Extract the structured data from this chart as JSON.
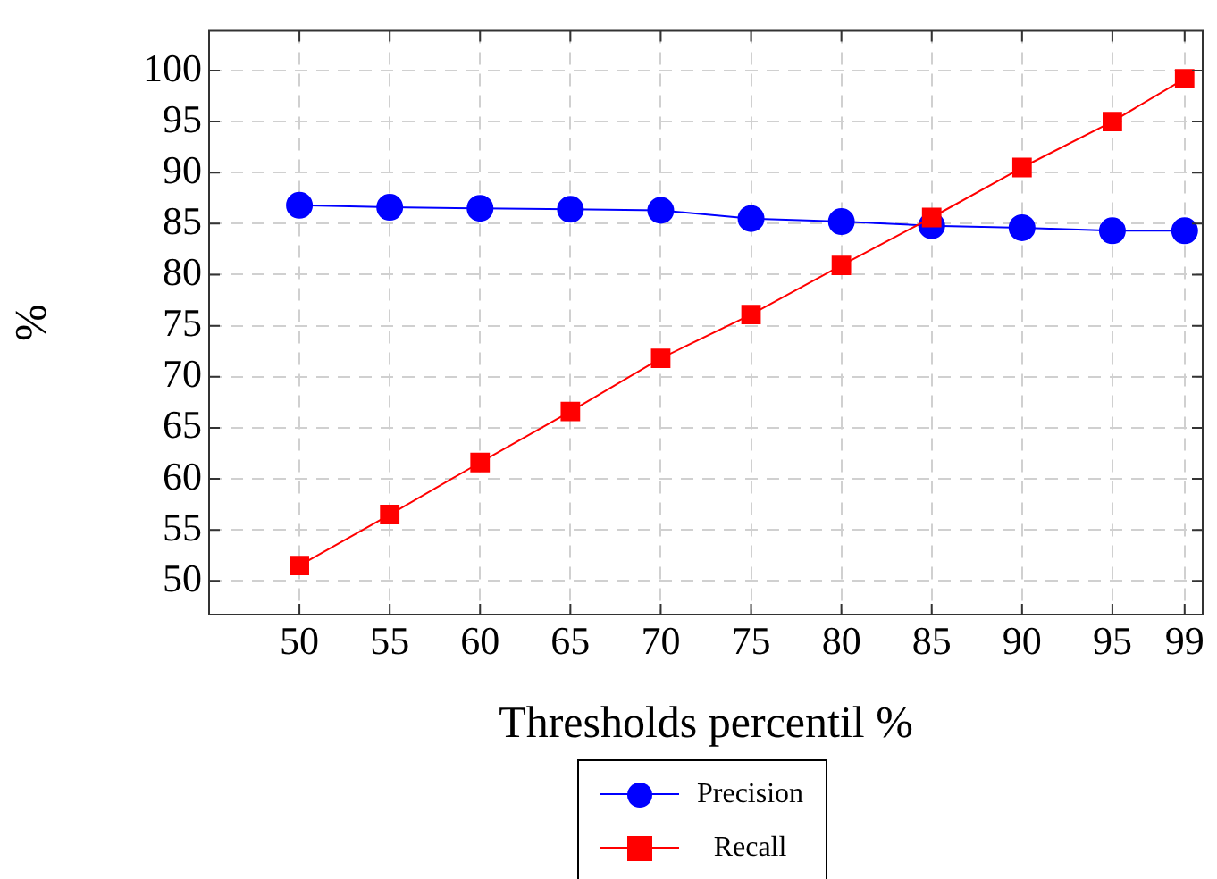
{
  "chart_data": {
    "type": "line",
    "xlabel": "Thresholds percentil %",
    "ylabel": "%",
    "x": [
      50,
      55,
      60,
      65,
      70,
      75,
      80,
      85,
      90,
      95,
      99
    ],
    "xlim": [
      45,
      100
    ],
    "xticks": [
      50,
      55,
      60,
      65,
      70,
      75,
      80,
      85,
      90,
      95,
      99
    ],
    "ylim": [
      46.7,
      103.9
    ],
    "yticks": [
      50,
      55,
      60,
      65,
      70,
      75,
      80,
      85,
      90,
      95,
      100
    ],
    "grid": true,
    "legend": "bottom",
    "line_style": "solid",
    "series": [
      {
        "name": "Precision",
        "color": "#0000ff",
        "marker": "circle",
        "values": [
          86.8,
          86.6,
          86.5,
          86.4,
          86.3,
          85.5,
          85.2,
          84.8,
          84.6,
          84.3,
          84.3
        ]
      },
      {
        "name": "Recall",
        "color": "#ff0000",
        "marker": "square",
        "values": [
          51.5,
          56.5,
          61.6,
          66.6,
          71.8,
          76.1,
          80.9,
          85.6,
          90.5,
          95.0,
          99.2
        ]
      }
    ]
  }
}
